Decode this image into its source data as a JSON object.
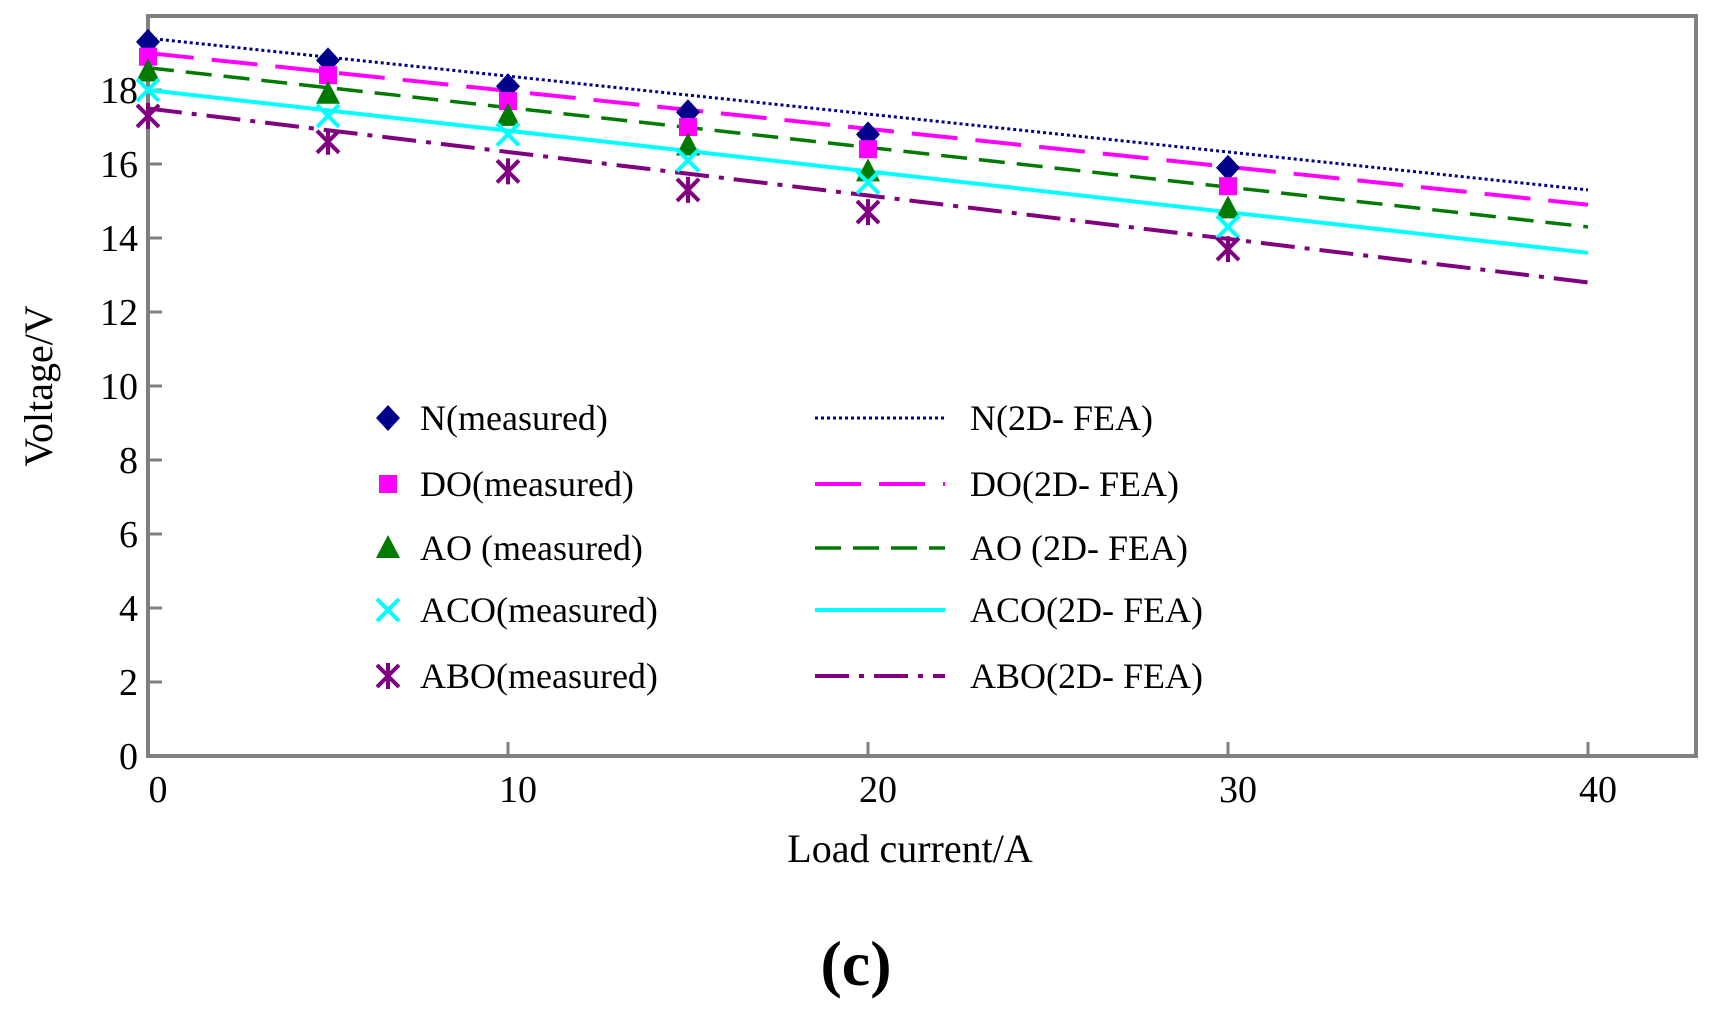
{
  "chart_data": {
    "type": "line",
    "title": "",
    "xlabel": "Load current/A",
    "ylabel": "Voltage/V",
    "xlim": [
      0,
      43
    ],
    "ylim": [
      0,
      20
    ],
    "xticks": [
      0,
      10,
      20,
      30,
      40
    ],
    "yticks": [
      0,
      2,
      4,
      6,
      8,
      10,
      12,
      14,
      16,
      18
    ],
    "panel_label": "(c)",
    "measured_series": [
      {
        "name": "N(measured)",
        "marker": "diamond",
        "color": "#00008B",
        "x": [
          0,
          5,
          10,
          15,
          20,
          30
        ],
        "y": [
          19.3,
          18.8,
          18.1,
          17.4,
          16.8,
          15.9
        ]
      },
      {
        "name": "DO(measured)",
        "marker": "square",
        "color": "#FF00FF",
        "x": [
          0,
          5,
          10,
          15,
          20,
          30
        ],
        "y": [
          18.9,
          18.4,
          17.7,
          17.0,
          16.4,
          15.4
        ]
      },
      {
        "name": "AO (measured)",
        "marker": "triangle",
        "color": "#007A00",
        "x": [
          0,
          5,
          10,
          15,
          20,
          30
        ],
        "y": [
          18.5,
          17.9,
          17.3,
          16.5,
          15.8,
          14.8
        ]
      },
      {
        "name": "ACO(measured)",
        "marker": "x",
        "color": "#00FFFF",
        "x": [
          0,
          5,
          10,
          15,
          20,
          30
        ],
        "y": [
          18.0,
          17.3,
          16.8,
          16.1,
          15.5,
          14.3
        ]
      },
      {
        "name": "ABO(measured)",
        "marker": "asterisk",
        "color": "#800080",
        "x": [
          0,
          5,
          10,
          15,
          20,
          30
        ],
        "y": [
          17.3,
          16.6,
          15.8,
          15.3,
          14.7,
          13.7
        ]
      }
    ],
    "fea_series": [
      {
        "name": "N(2D- FEA)",
        "dash": "dotted",
        "color": "#00008B",
        "x": [
          0,
          40
        ],
        "y": [
          19.4,
          15.3
        ]
      },
      {
        "name": "DO(2D- FEA)",
        "dash": "long-dash",
        "color": "#FF00FF",
        "x": [
          0,
          40
        ],
        "y": [
          19.0,
          14.9
        ]
      },
      {
        "name": "AO (2D- FEA)",
        "dash": "dash",
        "color": "#007A00",
        "x": [
          0,
          40
        ],
        "y": [
          18.6,
          14.3
        ]
      },
      {
        "name": "ACO(2D- FEA)",
        "dash": "solid",
        "color": "#00FFFF",
        "x": [
          0,
          40
        ],
        "y": [
          18.0,
          13.6
        ]
      },
      {
        "name": "ABO(2D- FEA)",
        "dash": "dash-dot",
        "color": "#800080",
        "x": [
          0,
          40
        ],
        "y": [
          17.5,
          12.8
        ]
      }
    ]
  }
}
